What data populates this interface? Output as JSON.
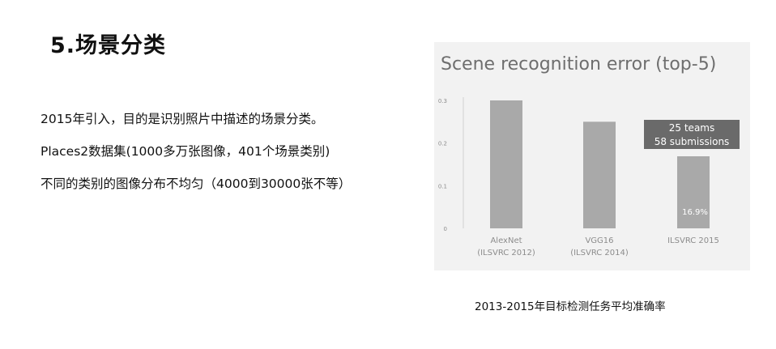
{
  "slide": {
    "title": "5.场景分类",
    "bullets": [
      "2015年引入，目的是识别照片中描述的场景分类。",
      "Places2数据集(1000多万张图像，401个场景类别)",
      "不同的类别的图像分布不均匀（4000到30000张不等）"
    ],
    "caption": "2013-2015年目标检测任务平均准确率"
  },
  "chart_data": {
    "type": "bar",
    "title": "Scene recognition error (top-5)",
    "categories": [
      [
        "AlexNet",
        "(ILSVRC 2012)"
      ],
      [
        "VGG16",
        "(ILSVRC 2014)"
      ],
      [
        "ILSVRC 2015"
      ]
    ],
    "values": [
      0.3,
      0.25,
      0.169
    ],
    "data_labels": [
      "",
      "",
      "16.9%"
    ],
    "y_ticks": [
      0,
      0.1,
      0.2,
      0.3
    ],
    "y_tick_labels": [
      "0",
      "0.1",
      "0.2",
      "0.3"
    ],
    "ylim": [
      0,
      0.3
    ],
    "grid": false,
    "annotation": [
      "25 teams",
      "58 submissions"
    ],
    "colors": {
      "bar": "#a9a9a9",
      "annotation_box": "#6a6a6a",
      "annotation_text": "#ffffff",
      "title": "#6e6e6e",
      "axis_text": "#8c8c8c",
      "panel": "#f2f2f2"
    }
  }
}
